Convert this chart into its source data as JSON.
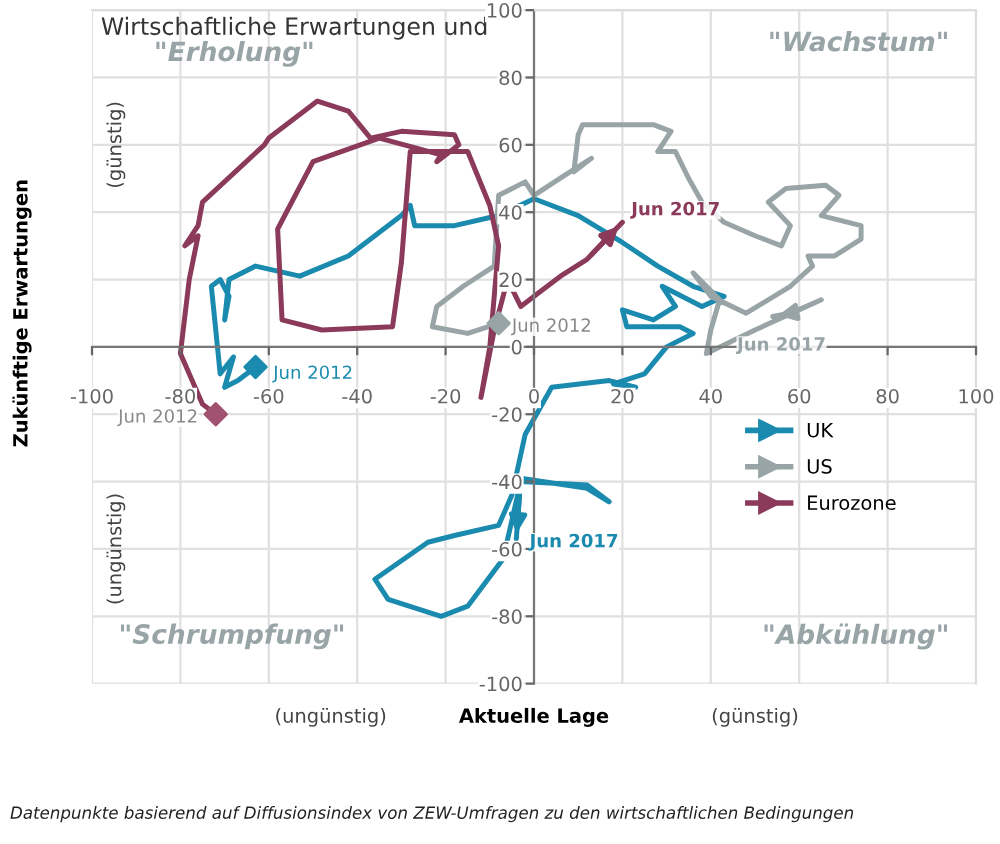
{
  "chart_data": {
    "type": "line",
    "title": "Wirtschaftliche Erwartungen und",
    "xlabel": "Aktuelle Lage",
    "ylabel": "Zukünftige Erwartungen",
    "xlim": [
      -100,
      100
    ],
    "ylim": [
      -100,
      100
    ],
    "xticks": [
      -100,
      -80,
      -60,
      -40,
      -20,
      0,
      20,
      40,
      60,
      80,
      100
    ],
    "yticks": [
      -100,
      -80,
      -60,
      -40,
      -20,
      0,
      20,
      40,
      60,
      80,
      100
    ],
    "grid": true,
    "legend": "right",
    "series": [
      {
        "name": "UK",
        "color": "#1a8aaf",
        "x": [
          -63,
          -67,
          -70,
          -68,
          -71,
          -72,
          -73,
          -71,
          -69,
          -70,
          -69,
          -63,
          -53,
          -42,
          -30,
          -28,
          -27,
          -18,
          -8,
          0,
          10,
          20,
          28,
          36,
          43,
          38,
          29,
          32,
          27,
          20,
          21,
          33,
          36,
          30,
          25,
          18,
          23,
          17,
          4,
          -2,
          -5,
          -8,
          -18,
          -24,
          -36,
          -33,
          -21,
          -15,
          -7,
          -3,
          12,
          17,
          12,
          -3,
          -4
        ],
        "values": [
          -6,
          -10,
          -12,
          -3,
          -8,
          5,
          18,
          20,
          15,
          8,
          20,
          24,
          21,
          27,
          39,
          42,
          36,
          36,
          39,
          44,
          39,
          31,
          24,
          18,
          15,
          12,
          18,
          12,
          8,
          11,
          6,
          6,
          4,
          0,
          -8,
          -11,
          -12,
          -10,
          -12,
          -26,
          -44,
          -53,
          -56,
          -58,
          -69,
          -75,
          -80,
          -77,
          -63,
          -40,
          -41,
          -46,
          -42,
          -39,
          -57
        ]
      },
      {
        "name": "US",
        "color": "#98a4a6",
        "x": [
          -8,
          -15,
          -23,
          -22,
          -16,
          -9,
          -8,
          -2,
          0,
          7,
          13,
          9,
          10,
          11,
          27,
          31,
          28,
          32,
          35,
          38,
          43,
          50,
          56,
          58,
          53,
          57,
          66,
          69,
          65,
          74,
          74,
          68,
          62,
          63,
          58,
          48,
          40,
          36,
          42,
          40,
          39,
          50,
          65,
          58,
          54
        ],
        "values": [
          7,
          4,
          6,
          12,
          18,
          24,
          45,
          49,
          45,
          51,
          56,
          52,
          63,
          66,
          66,
          64,
          58,
          58,
          50,
          43,
          37,
          33,
          30,
          36,
          43,
          47,
          48,
          45,
          39,
          36,
          32,
          27,
          27,
          24,
          18,
          10,
          15,
          22,
          14,
          5,
          -2,
          5,
          14,
          10,
          9
        ]
      },
      {
        "name": "Eurozone",
        "color": "#8b3a5a",
        "x": [
          -72,
          -75,
          -80,
          -78,
          -76,
          -79,
          -76,
          -75,
          -61,
          -60,
          -49,
          -42,
          -37,
          -30,
          -18,
          -17,
          -22,
          -21,
          -35,
          -50,
          -58,
          -57,
          -48,
          -32,
          -30,
          -28,
          -15,
          -10,
          -8,
          -10,
          -12,
          -9,
          -6,
          -3,
          3,
          6,
          12,
          20
        ],
        "values": [
          -20,
          -17,
          -2,
          20,
          33,
          30,
          36,
          43,
          60,
          62,
          73,
          70,
          62,
          64,
          63,
          60,
          55,
          57,
          62,
          55,
          35,
          8,
          5,
          6,
          25,
          58,
          58,
          42,
          30,
          0,
          -15,
          5,
          20,
          12,
          18,
          21,
          26,
          37
        ]
      },
      {
        "type": "scatter",
        "color": "#1a8aaf",
        "marker": "diamond",
        "x": [
          -63
        ],
        "values": [
          -6
        ]
      },
      {
        "type": "scatter",
        "color": "#98a4a6",
        "marker": "diamond",
        "x": [
          -8
        ],
        "values": [
          7
        ]
      },
      {
        "type": "scatter",
        "color": "#a0526f",
        "marker": "diamond",
        "x": [
          -72
        ],
        "values": [
          -20
        ]
      }
    ],
    "annotations": [
      {
        "text": "Jun 2012",
        "x": -63,
        "y": -6
      },
      {
        "text": "Jun 2012",
        "x": -8,
        "y": 7
      },
      {
        "text": "Jun 2012",
        "x": -72,
        "y": -20
      },
      {
        "text": "Jun 2017",
        "x": -4,
        "y": -57
      },
      {
        "text": "Jun 2017",
        "x": 54,
        "y": 9
      },
      {
        "text": "Jun 2017",
        "x": 20,
        "y": 37
      },
      "\"Erholung\"",
      "\"Wachstum\"",
      "\"Schrumpfung\"",
      "\"Abkühlung\"",
      "(günstig)",
      "(ungünstig)",
      "(ungünstig)",
      "(günstig)",
      "Datenpunkte basierend auf Diffusionsindex von ZEW-Umfragen zu den wirtschaftlichen Bedingungen"
    ]
  }
}
